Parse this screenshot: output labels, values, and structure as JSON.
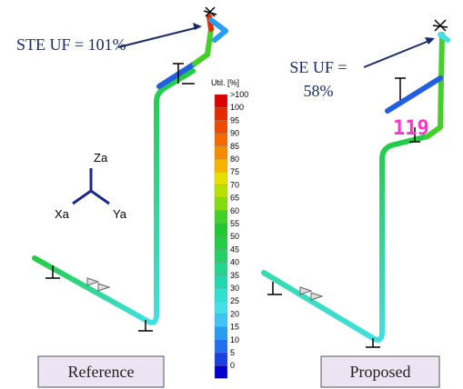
{
  "left_note": "STE UF = 101%",
  "right_note": {
    "line1": "SE UF =",
    "line2": "58%"
  },
  "marker": "119",
  "axes": {
    "z": "Za",
    "x": "Xa",
    "y": "Ya"
  },
  "legend": {
    "title": "Util. [%]",
    "items": [
      {
        "label": ">100",
        "color": "#dd0000"
      },
      {
        "label": "100",
        "color": "#e62a00"
      },
      {
        "label": "95",
        "color": "#ee4a00"
      },
      {
        "label": "90",
        "color": "#f26a00"
      },
      {
        "label": "85",
        "color": "#f58c00"
      },
      {
        "label": "80",
        "color": "#f5b400"
      },
      {
        "label": "75",
        "color": "#e6e000"
      },
      {
        "label": "70",
        "color": "#b8e000"
      },
      {
        "label": "65",
        "color": "#84dc10"
      },
      {
        "label": "60",
        "color": "#44d028"
      },
      {
        "label": "55",
        "color": "#22c832"
      },
      {
        "label": "50",
        "color": "#22cc44"
      },
      {
        "label": "45",
        "color": "#22d064"
      },
      {
        "label": "40",
        "color": "#22d48c"
      },
      {
        "label": "35",
        "color": "#22d8b0"
      },
      {
        "label": "30",
        "color": "#30e0d0"
      },
      {
        "label": "25",
        "color": "#44e0e8"
      },
      {
        "label": "20",
        "color": "#40c4f4"
      },
      {
        "label": "15",
        "color": "#2a9cf0"
      },
      {
        "label": "10",
        "color": "#2070ee"
      },
      {
        "label": "5",
        "color": "#1a40e0"
      },
      {
        "label": "0",
        "color": "#0000cc"
      }
    ]
  },
  "labels": {
    "reference": "Reference",
    "proposed": "Proposed"
  }
}
